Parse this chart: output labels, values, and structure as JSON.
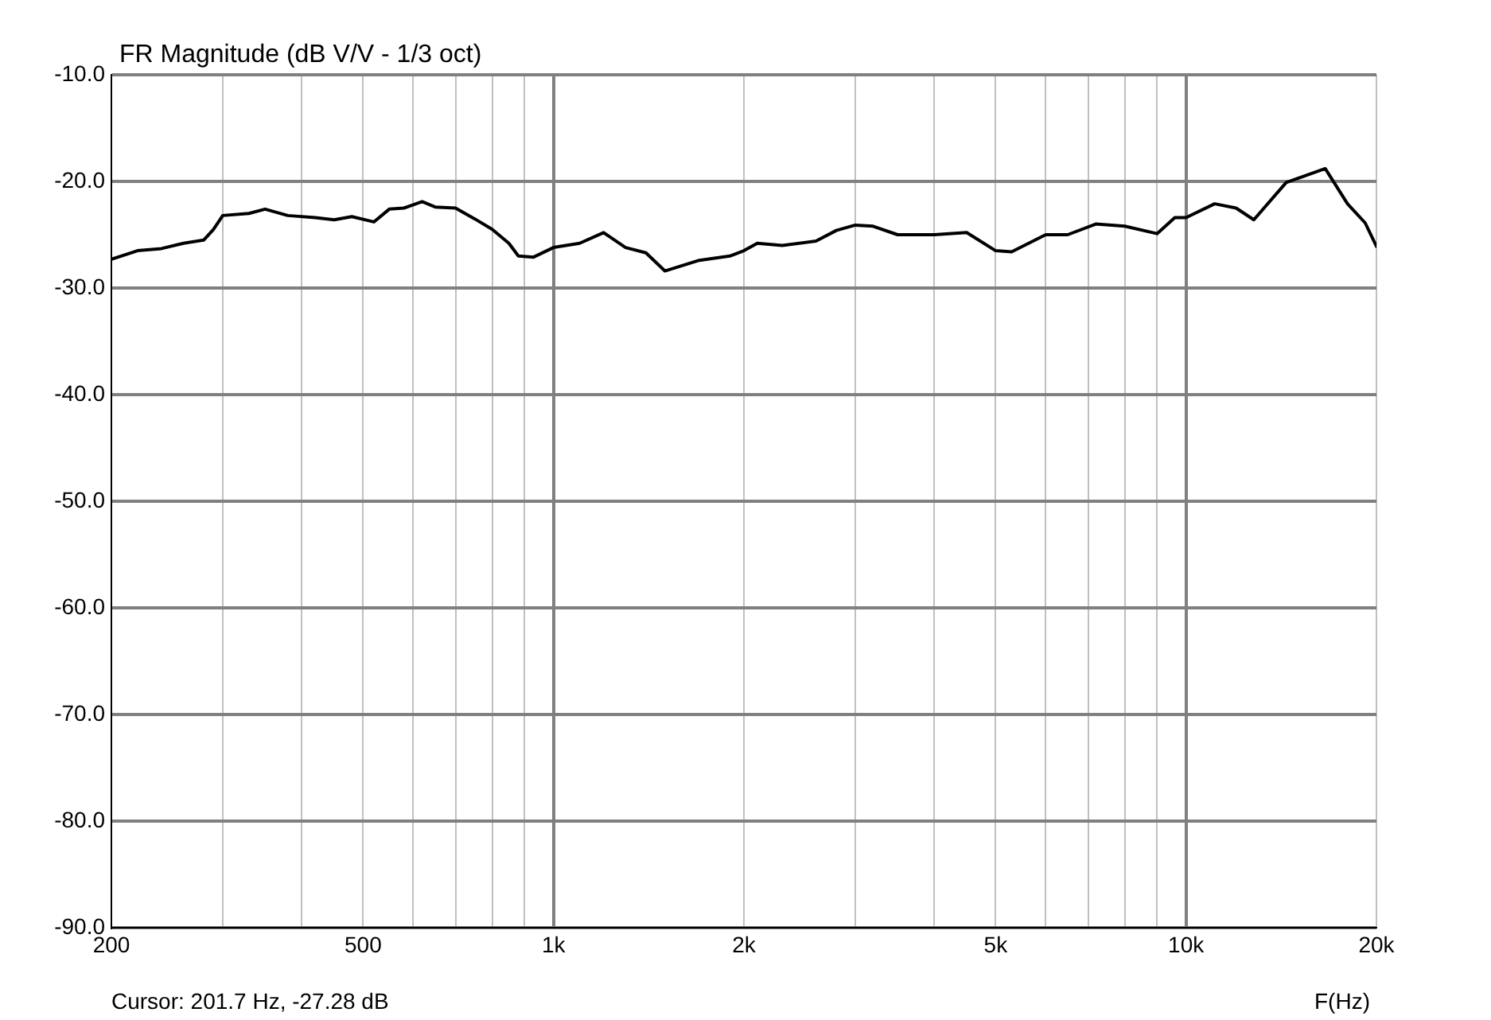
{
  "chart_data": {
    "type": "line",
    "title": "FR Magnitude (dB V/V - 1/3 oct)",
    "xlabel": "F(Hz)",
    "annotations": [
      "Cursor: 201.7 Hz, -27.28 dB"
    ],
    "log": "x",
    "grid": true,
    "legend": false,
    "marker": "none",
    "line_style": "solid",
    "xlim": [
      200,
      20000
    ],
    "ylim": [
      -90,
      -10
    ],
    "xticks": [
      {
        "value": 200,
        "label": "200"
      },
      {
        "value": 300,
        "label": null
      },
      {
        "value": 400,
        "label": null
      },
      {
        "value": 500,
        "label": "500"
      },
      {
        "value": 600,
        "label": null
      },
      {
        "value": 700,
        "label": null
      },
      {
        "value": 800,
        "label": null
      },
      {
        "value": 900,
        "label": null
      },
      {
        "value": 1000,
        "label": "1k"
      },
      {
        "value": 2000,
        "label": "2k"
      },
      {
        "value": 3000,
        "label": null
      },
      {
        "value": 4000,
        "label": null
      },
      {
        "value": 5000,
        "label": "5k"
      },
      {
        "value": 6000,
        "label": null
      },
      {
        "value": 7000,
        "label": null
      },
      {
        "value": 8000,
        "label": null
      },
      {
        "value": 9000,
        "label": null
      },
      {
        "value": 10000,
        "label": "10k"
      },
      {
        "value": 20000,
        "label": "20k"
      }
    ],
    "yticks": [
      {
        "value": -90,
        "label": "-90.0"
      },
      {
        "value": -80,
        "label": "-80.0"
      },
      {
        "value": -70,
        "label": "-70.0"
      },
      {
        "value": -60,
        "label": "-60.0"
      },
      {
        "value": -50,
        "label": "-50.0"
      },
      {
        "value": -40,
        "label": "-40.0"
      },
      {
        "value": -30,
        "label": "-30.0"
      },
      {
        "value": -20,
        "label": "-20.0"
      },
      {
        "value": -10,
        "label": "-10.0"
      }
    ],
    "series": [
      {
        "color": "#000000",
        "x": [
          200,
          220,
          240,
          260,
          280,
          290,
          300,
          330,
          350,
          380,
          420,
          450,
          480,
          520,
          550,
          580,
          620,
          650,
          700,
          750,
          800,
          850,
          880,
          930,
          1000,
          1100,
          1200,
          1300,
          1400,
          1500,
          1700,
          1900,
          2000,
          2100,
          2300,
          2600,
          2800,
          3000,
          3200,
          3500,
          4000,
          4500,
          5000,
          5300,
          6000,
          6500,
          7200,
          8000,
          9000,
          9600,
          10000,
          11100,
          12000,
          12800,
          14400,
          16600,
          18000,
          19200,
          20000
        ],
        "values": [
          -27.3,
          -26.5,
          -26.3,
          -25.8,
          -25.5,
          -24.5,
          -23.2,
          -23,
          -22.6,
          -23.2,
          -23.4,
          -23.6,
          -23.3,
          -23.8,
          -22.6,
          -22.5,
          -21.9,
          -22.4,
          -22.5,
          -23.5,
          -24.5,
          -25.8,
          -27,
          -27.1,
          -26.2,
          -25.8,
          -24.8,
          -26.2,
          -26.7,
          -28.4,
          -27.4,
          -27,
          -26.5,
          -25.8,
          -26,
          -25.6,
          -24.6,
          -24.1,
          -24.2,
          -25,
          -25,
          -24.8,
          -26.5,
          -26.6,
          -25,
          -25,
          -24,
          -24.2,
          -24.9,
          -23.4,
          -23.4,
          -22.1,
          -22.5,
          -23.6,
          -20.1,
          -18.8,
          -22.1,
          -23.9,
          -26.1
        ]
      }
    ]
  }
}
